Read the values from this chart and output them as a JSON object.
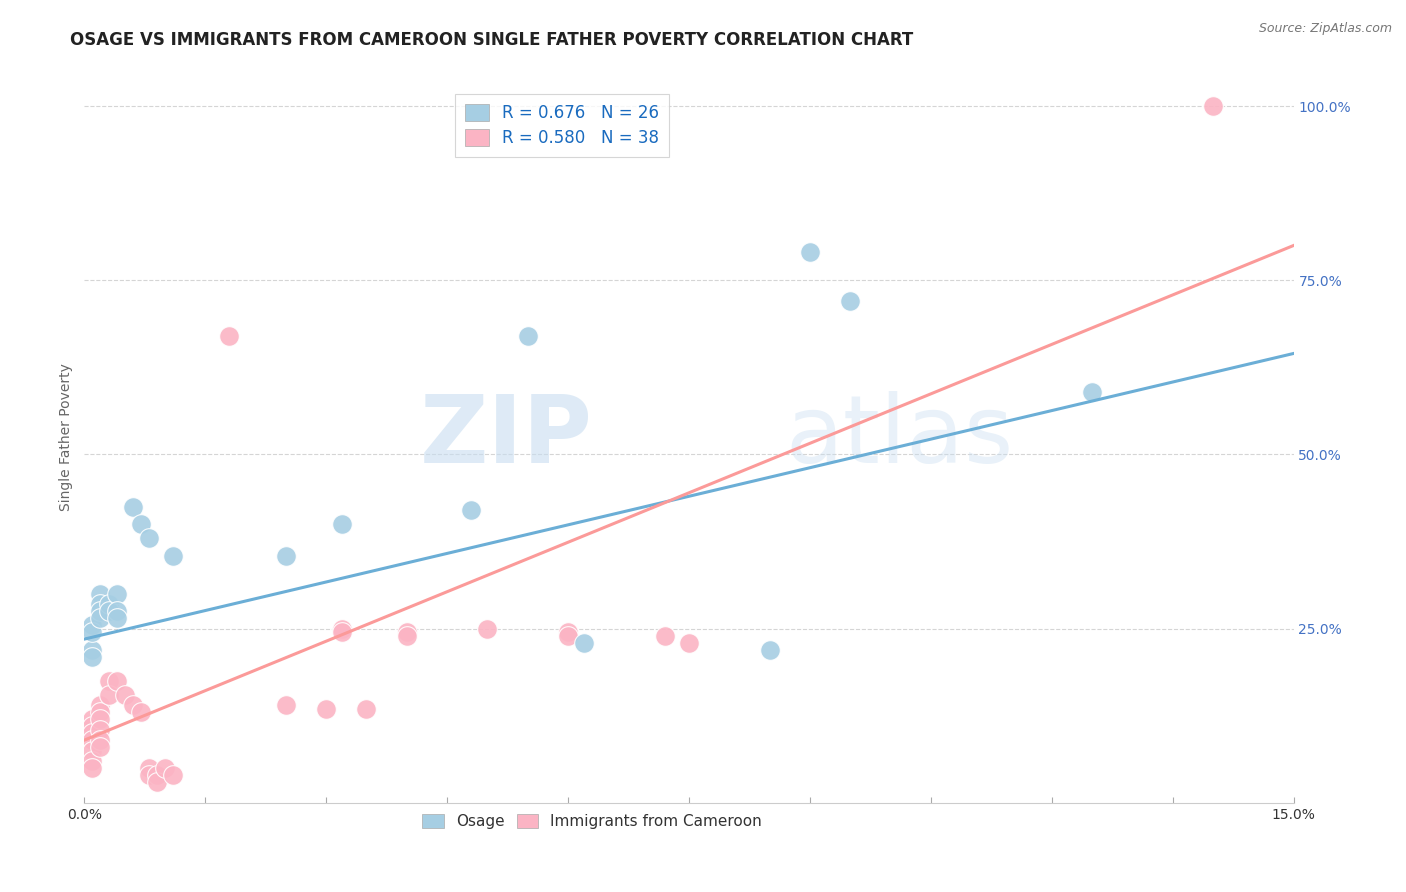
{
  "title": "OSAGE VS IMMIGRANTS FROM CAMEROON SINGLE FATHER POVERTY CORRELATION CHART",
  "source": "Source: ZipAtlas.com",
  "ylabel": "Single Father Poverty",
  "xlim": [
    0.0,
    0.15
  ],
  "ylim": [
    0.0,
    1.05
  ],
  "xtick_positions": [
    0.0,
    0.015,
    0.03,
    0.045,
    0.06,
    0.075,
    0.09,
    0.105,
    0.12,
    0.135,
    0.15
  ],
  "xtick_labels": [
    "0.0%",
    "",
    "",
    "",
    "",
    "",
    "",
    "",
    "",
    "",
    "15.0%"
  ],
  "ytick_positions": [
    0.25,
    0.5,
    0.75,
    1.0
  ],
  "ytick_labels": [
    "25.0%",
    "50.0%",
    "75.0%",
    "100.0%"
  ],
  "watermark_zip": "ZIP",
  "watermark_atlas": "atlas",
  "osage_scatter": [
    [
      0.001,
      0.22
    ],
    [
      0.001,
      0.255
    ],
    [
      0.001,
      0.245
    ],
    [
      0.001,
      0.21
    ],
    [
      0.002,
      0.3
    ],
    [
      0.002,
      0.285
    ],
    [
      0.002,
      0.275
    ],
    [
      0.002,
      0.265
    ],
    [
      0.003,
      0.285
    ],
    [
      0.003,
      0.275
    ],
    [
      0.004,
      0.3
    ],
    [
      0.004,
      0.275
    ],
    [
      0.004,
      0.265
    ],
    [
      0.006,
      0.425
    ],
    [
      0.007,
      0.4
    ],
    [
      0.008,
      0.38
    ],
    [
      0.011,
      0.355
    ],
    [
      0.025,
      0.355
    ],
    [
      0.032,
      0.4
    ],
    [
      0.048,
      0.42
    ],
    [
      0.055,
      0.67
    ],
    [
      0.062,
      0.23
    ],
    [
      0.085,
      0.22
    ],
    [
      0.09,
      0.79
    ],
    [
      0.095,
      0.72
    ],
    [
      0.125,
      0.59
    ]
  ],
  "cameroon_scatter": [
    [
      0.001,
      0.12
    ],
    [
      0.001,
      0.11
    ],
    [
      0.001,
      0.1
    ],
    [
      0.001,
      0.09
    ],
    [
      0.001,
      0.075
    ],
    [
      0.001,
      0.06
    ],
    [
      0.001,
      0.05
    ],
    [
      0.002,
      0.14
    ],
    [
      0.002,
      0.13
    ],
    [
      0.002,
      0.12
    ],
    [
      0.002,
      0.105
    ],
    [
      0.002,
      0.09
    ],
    [
      0.002,
      0.08
    ],
    [
      0.003,
      0.175
    ],
    [
      0.003,
      0.155
    ],
    [
      0.004,
      0.175
    ],
    [
      0.005,
      0.155
    ],
    [
      0.006,
      0.14
    ],
    [
      0.007,
      0.13
    ],
    [
      0.008,
      0.05
    ],
    [
      0.008,
      0.04
    ],
    [
      0.009,
      0.04
    ],
    [
      0.009,
      0.03
    ],
    [
      0.01,
      0.05
    ],
    [
      0.011,
      0.04
    ],
    [
      0.018,
      0.67
    ],
    [
      0.025,
      0.14
    ],
    [
      0.03,
      0.135
    ],
    [
      0.032,
      0.25
    ],
    [
      0.032,
      0.245
    ],
    [
      0.035,
      0.135
    ],
    [
      0.04,
      0.245
    ],
    [
      0.04,
      0.24
    ],
    [
      0.05,
      0.25
    ],
    [
      0.06,
      0.245
    ],
    [
      0.06,
      0.24
    ],
    [
      0.072,
      0.24
    ],
    [
      0.075,
      0.23
    ],
    [
      0.14,
      1.0
    ]
  ],
  "osage_line": {
    "x0": 0.0,
    "y0": 0.235,
    "x1": 0.15,
    "y1": 0.645
  },
  "cameroon_line": {
    "x0": 0.0,
    "y0": 0.09,
    "x1": 0.15,
    "y1": 0.8
  },
  "osage_line_color": "#6baed6",
  "cameroon_line_color": "#fb9a99",
  "osage_scatter_color": "#a6cee3",
  "cameroon_scatter_color": "#fbb4c4",
  "grid_color": "#d5d5d5",
  "title_fontsize": 12,
  "axis_label_fontsize": 10,
  "tick_fontsize": 10,
  "right_tick_color": "#4472c4",
  "background_color": "#ffffff"
}
